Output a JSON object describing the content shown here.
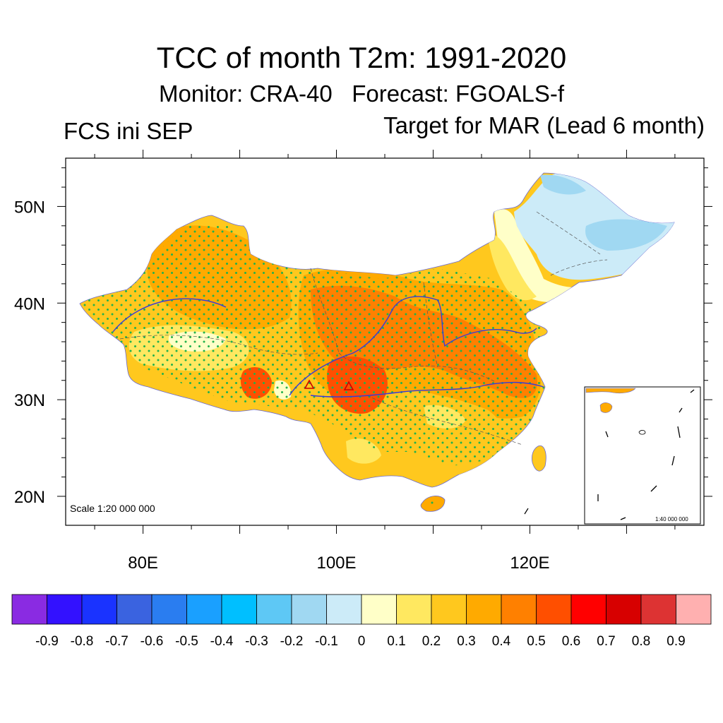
{
  "title": "TCC of month T2m: 1991-2020",
  "subtitle": "Monitor: CRA-40   Forecast: FGOALS-f",
  "left_label": "FCS ini SEP",
  "right_label": "Target for MAR (Lead 6 month)",
  "scale_main": "Scale 1:20 000 000",
  "scale_inset": "1:40 000 000",
  "map": {
    "lon_ticks": [
      "80E",
      "100E",
      "120E"
    ],
    "lat_ticks": [
      "50N",
      "40N",
      "30N",
      "20N"
    ],
    "lon_range": [
      72,
      138
    ],
    "lat_range": [
      17,
      55
    ],
    "stipple_color": "#22b14c",
    "river_color": "#3a3ad8"
  },
  "colorbar": {
    "colors": [
      "#8a2be2",
      "#3311ff",
      "#1a33ff",
      "#3a63e0",
      "#2a7df0",
      "#1aa0ff",
      "#00bfff",
      "#5ec8f5",
      "#a0d8f2",
      "#ccebf8",
      "#ffffc8",
      "#ffe860",
      "#ffc81e",
      "#ffaa00",
      "#ff8000",
      "#ff4f00",
      "#ff0000",
      "#d70000",
      "#dd3333",
      "#ffb0b0"
    ],
    "labels": [
      "-0.9",
      "-0.8",
      "-0.7",
      "-0.6",
      "-0.5",
      "-0.4",
      "-0.3",
      "-0.2",
      "-0.1",
      "0",
      "0.1",
      "0.2",
      "0.3",
      "0.4",
      "0.5",
      "0.6",
      "0.7",
      "0.8",
      "0.9"
    ]
  }
}
